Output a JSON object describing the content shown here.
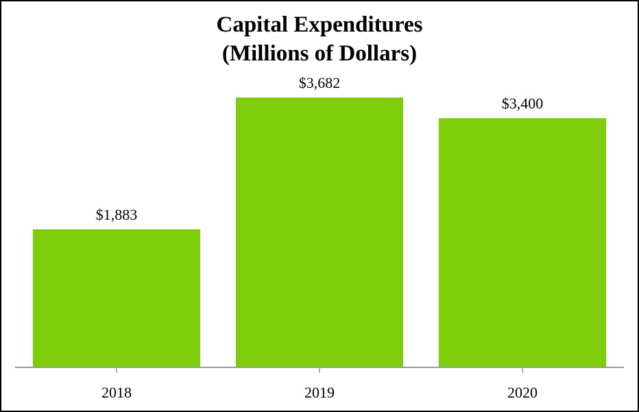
{
  "chart_data": {
    "type": "bar",
    "title": "Capital Expenditures",
    "subtitle": "(Millions of Dollars)",
    "categories": [
      "2018",
      "2019",
      "2020"
    ],
    "values": [
      1883,
      3682,
      3400
    ],
    "value_labels": [
      "$1,883",
      "$3,682",
      "$3,400"
    ],
    "xlabel": "",
    "ylabel": "",
    "ylim": [
      0,
      4000
    ],
    "grid": false,
    "colors": {
      "bar": "#7ecd0a",
      "axis": "#9a9a9a",
      "text": "#000000"
    }
  }
}
